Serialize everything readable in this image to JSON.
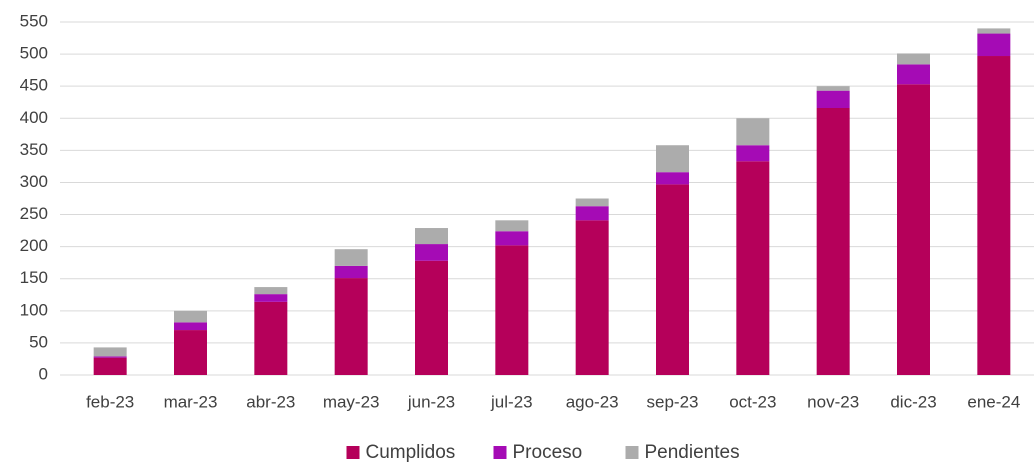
{
  "chart_data": {
    "type": "stacked_bar",
    "categories": [
      "feb-23",
      "mar-23",
      "abr-23",
      "may-23",
      "jun-23",
      "jul-23",
      "ago-23",
      "sep-23",
      "oct-23",
      "nov-23",
      "dic-23",
      "ene-24"
    ],
    "series": [
      {
        "name": "Cumplidos",
        "color": "#b5005a",
        "values": [
          27,
          70,
          114,
          151,
          178,
          202,
          241,
          297,
          333,
          416,
          453,
          497
        ]
      },
      {
        "name": "Proceso",
        "color": "#a50bb5",
        "values": [
          2,
          12,
          12,
          19,
          26,
          22,
          22,
          19,
          25,
          27,
          31,
          35
        ]
      },
      {
        "name": "Pendientes",
        "color": "#acacac",
        "values": [
          14,
          18,
          11,
          26,
          25,
          17,
          12,
          42,
          42,
          7,
          17,
          8
        ]
      }
    ],
    "ylim": [
      0,
      550
    ],
    "yticks": [
      0,
      50,
      100,
      150,
      200,
      250,
      300,
      350,
      400,
      450,
      500,
      550
    ],
    "grid": true,
    "legend": "bottom"
  }
}
